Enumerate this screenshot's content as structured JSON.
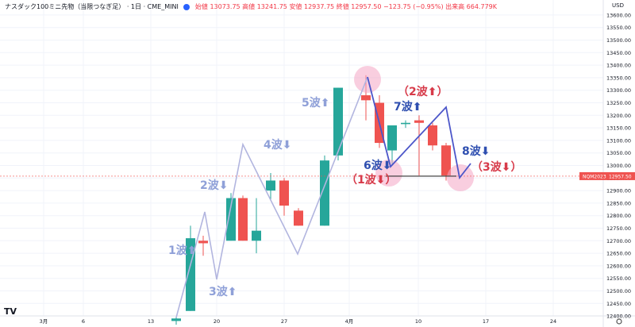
{
  "header": {
    "symbol": "ナスダック100ミニ先物（当限つなぎ足）",
    "interval": "1日",
    "exchange": "CME_MINI",
    "open": "始値 13073.75",
    "high": "高値 13241.75",
    "low": "安値 12937.75",
    "close": "終値 12957.50",
    "change": "−123.75 (−0.95%)",
    "volume": "出来高 664.779K"
  },
  "currency": "USD",
  "price_tag": {
    "symbol": "NQM2023",
    "value": "12957.50"
  },
  "logo_text": "TV",
  "colors": {
    "up": "#26a69a",
    "down": "#ef5350",
    "wave_light": "#b2b5df",
    "wave_dark": "#4c56c9",
    "label_blue": "#2f4fb0",
    "label_light": "#8fa0d8",
    "label_red": "#d73a49",
    "circle": "#f4a6c5"
  },
  "chart_data": {
    "type": "candlestick",
    "ylim": [
      12375,
      13625
    ],
    "y_ticks": [
      12400,
      12450,
      12500,
      12550,
      12600,
      12650,
      12700,
      12750,
      12800,
      12850,
      12900,
      12950,
      13000,
      13050,
      13100,
      13150,
      13200,
      13250,
      13300,
      13350,
      13400,
      13450,
      13500,
      13550,
      13600
    ],
    "x_labels": [
      "3月",
      "6",
      "13",
      "20",
      "27",
      "4月",
      "10",
      "17",
      "24"
    ],
    "candles": [
      {
        "o": 12380,
        "h": 12395,
        "l": 12365,
        "c": 12390
      },
      {
        "o": 12420,
        "h": 12760,
        "l": 12420,
        "c": 12710
      },
      {
        "o": 12700,
        "h": 12720,
        "l": 12640,
        "c": 12690
      },
      {
        "o": 12700,
        "h": 12890,
        "l": 12700,
        "c": 12870
      },
      {
        "o": 12870,
        "h": 12880,
        "l": 12700,
        "c": 12700
      },
      {
        "o": 12700,
        "h": 12870,
        "l": 12650,
        "c": 12740
      },
      {
        "o": 12900,
        "h": 12970,
        "l": 12860,
        "c": 12940
      },
      {
        "o": 12940,
        "h": 12950,
        "l": 12800,
        "c": 12840
      },
      {
        "o": 12820,
        "h": 12830,
        "l": 12760,
        "c": 12760
      },
      {
        "o": 12760,
        "h": 13040,
        "l": 12760,
        "c": 13020
      },
      {
        "o": 13040,
        "h": 13310,
        "l": 13020,
        "c": 13310
      },
      {
        "o": 13280,
        "h": 13360,
        "l": 13180,
        "c": 13260
      },
      {
        "o": 13250,
        "h": 13280,
        "l": 13070,
        "c": 13090
      },
      {
        "o": 13060,
        "h": 13160,
        "l": 13000,
        "c": 13160
      },
      {
        "o": 13165,
        "h": 13180,
        "l": 13150,
        "c": 13170
      },
      {
        "o": 13180,
        "h": 13200,
        "l": 12960,
        "c": 13170
      },
      {
        "o": 13160,
        "h": 13170,
        "l": 13060,
        "c": 13080
      },
      {
        "o": 13080,
        "h": 13090,
        "l": 12940,
        "c": 12960
      }
    ],
    "wave_light_path": [
      [
        12390,
        "c0"
      ],
      [
        12850,
        "c1"
      ],
      [
        12520,
        "c2"
      ],
      [
        13100,
        "c4"
      ],
      [
        12640,
        "c8"
      ],
      [
        13360,
        "c11"
      ]
    ],
    "wave_dark_path": [
      [
        13360,
        "c11"
      ],
      [
        12980,
        "c13"
      ],
      [
        13230,
        "c17"
      ],
      [
        12940,
        "c18"
      ],
      [
        12990,
        "c19"
      ]
    ],
    "wave_labels": [
      {
        "text": "1波⬆",
        "cls": "light"
      },
      {
        "text": "2波⬇",
        "cls": "light"
      },
      {
        "text": "3波⬆",
        "cls": "light"
      },
      {
        "text": "4波⬇",
        "cls": "light"
      },
      {
        "text": "5波⬆",
        "cls": "light"
      },
      {
        "text": "6波⬇",
        "cls": "blue"
      },
      {
        "text": "（1波⬇）",
        "cls": "red"
      },
      {
        "text": "7波⬆",
        "cls": "blue"
      },
      {
        "text": "（2波⬆）",
        "cls": "red"
      },
      {
        "text": "8波⬇",
        "cls": "blue"
      },
      {
        "text": "（3波⬇）",
        "cls": "red"
      }
    ],
    "price_line": 12957.5
  }
}
